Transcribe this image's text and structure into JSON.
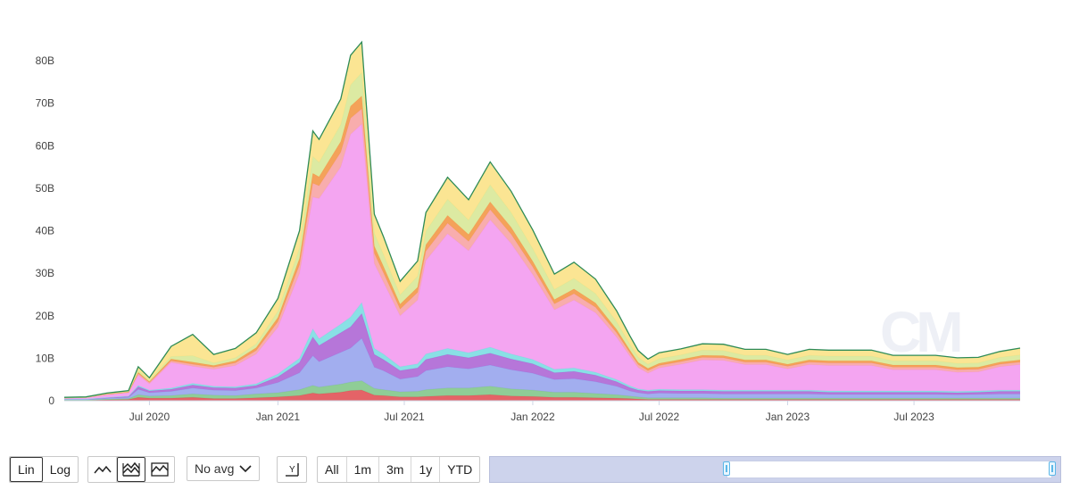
{
  "chart_data": {
    "type": "area",
    "stacked": true,
    "y_ticks": [
      "0",
      "10B",
      "20B",
      "30B",
      "40B",
      "50B",
      "60B",
      "70B",
      "80B"
    ],
    "x_ticks": [
      "Jul 2020",
      "Jan 2021",
      "Jul 2021",
      "Jan 2022",
      "Jul 2022",
      "Jan 2023",
      "Jul 2023"
    ],
    "ylim": [
      0,
      88
    ],
    "y_unit": "B",
    "x_range": [
      "2020-03-01",
      "2023-11-30"
    ],
    "grid": false,
    "dates": [
      "2020-03-01",
      "2020-04-01",
      "2020-05-01",
      "2020-06-01",
      "2020-06-15",
      "2020-07-01",
      "2020-08-01",
      "2020-09-01",
      "2020-10-01",
      "2020-11-01",
      "2020-12-01",
      "2021-01-01",
      "2021-02-01",
      "2021-02-20",
      "2021-03-01",
      "2021-04-01",
      "2021-04-15",
      "2021-05-01",
      "2021-05-19",
      "2021-06-01",
      "2021-06-25",
      "2021-07-20",
      "2021-08-01",
      "2021-09-01",
      "2021-10-01",
      "2021-11-01",
      "2021-12-01",
      "2022-01-01",
      "2022-02-01",
      "2022-03-01",
      "2022-04-01",
      "2022-05-01",
      "2022-05-20",
      "2022-06-01",
      "2022-06-15",
      "2022-07-01",
      "2022-08-01",
      "2022-09-01",
      "2022-10-01",
      "2022-11-01",
      "2022-12-01",
      "2023-01-01",
      "2023-02-01",
      "2023-03-01",
      "2023-04-01",
      "2023-05-01",
      "2023-06-01",
      "2023-07-01",
      "2023-08-01",
      "2023-09-01",
      "2023-10-01",
      "2023-11-01",
      "2023-11-30"
    ],
    "series": [
      {
        "color": "#e2565a",
        "values": [
          0.1,
          0.1,
          0.2,
          0.3,
          0.8,
          0.6,
          0.6,
          0.8,
          0.5,
          0.5,
          0.7,
          0.9,
          1.2,
          1.8,
          1.6,
          2.0,
          2.4,
          2.5,
          1.3,
          1.2,
          0.9,
          0.9,
          1.0,
          1.2,
          1.2,
          1.4,
          1.1,
          1.0,
          0.8,
          0.8,
          0.7,
          0.6,
          0.5,
          0.4,
          0.3,
          0.3,
          0.3,
          0.3,
          0.3,
          0.3,
          0.3,
          0.3,
          0.3,
          0.3,
          0.3,
          0.3,
          0.3,
          0.3,
          0.3,
          0.3,
          0.3,
          0.3,
          0.3
        ]
      },
      {
        "color": "#86c98d",
        "values": [
          0.1,
          0.1,
          0.2,
          0.2,
          0.6,
          0.5,
          0.6,
          0.8,
          0.8,
          0.7,
          0.9,
          1.0,
          1.4,
          1.8,
          1.6,
          1.9,
          2.0,
          2.2,
          1.6,
          1.4,
          1.2,
          1.3,
          1.6,
          1.8,
          1.8,
          2.0,
          1.7,
          1.5,
          1.2,
          1.2,
          1.0,
          0.8,
          0.6,
          0.5,
          0.4,
          0.4,
          0.4,
          0.4,
          0.3,
          0.3,
          0.3,
          0.3,
          0.3,
          0.3,
          0.3,
          0.3,
          0.3,
          0.3,
          0.3,
          0.3,
          0.3,
          0.3,
          0.3
        ]
      },
      {
        "color": "#9aa7ee",
        "values": [
          0.1,
          0.1,
          0.2,
          0.3,
          1.3,
          0.8,
          1.0,
          1.4,
          1.2,
          1.2,
          1.4,
          2.4,
          4.0,
          7.0,
          6.0,
          7.5,
          8.0,
          10.0,
          5.0,
          4.5,
          3.0,
          3.5,
          4.5,
          5.0,
          4.5,
          5.0,
          4.5,
          4.0,
          3.0,
          3.2,
          2.8,
          2.0,
          1.2,
          1.0,
          0.9,
          1.1,
          1.0,
          1.0,
          1.0,
          1.0,
          1.0,
          1.0,
          1.0,
          0.9,
          0.9,
          0.9,
          0.9,
          0.9,
          0.9,
          0.8,
          0.9,
          1.0,
          1.0
        ]
      },
      {
        "color": "#b06ad6",
        "values": [
          0.1,
          0.1,
          0.1,
          0.2,
          0.6,
          0.4,
          0.5,
          0.7,
          0.6,
          0.6,
          0.6,
          1.3,
          2.4,
          4.4,
          3.8,
          4.6,
          5.0,
          5.8,
          3.0,
          2.6,
          2.0,
          2.0,
          2.6,
          2.9,
          2.6,
          2.8,
          2.5,
          2.2,
          1.6,
          1.7,
          1.5,
          1.1,
          0.8,
          0.6,
          0.6,
          0.6,
          0.6,
          0.6,
          0.6,
          0.6,
          0.6,
          0.6,
          0.6,
          0.5,
          0.5,
          0.5,
          0.5,
          0.5,
          0.5,
          0.5,
          0.5,
          0.6,
          0.6
        ]
      },
      {
        "color": "#7fdde3",
        "values": [
          0.0,
          0.0,
          0.1,
          0.1,
          0.3,
          0.2,
          0.3,
          0.4,
          0.3,
          0.3,
          0.4,
          0.7,
          1.0,
          1.9,
          1.6,
          2.0,
          2.3,
          2.6,
          1.4,
          1.3,
          0.9,
          1.0,
          1.3,
          1.4,
          1.2,
          1.4,
          1.2,
          1.0,
          0.8,
          0.8,
          0.7,
          0.5,
          0.4,
          0.3,
          0.3,
          0.3,
          0.3,
          0.3,
          0.3,
          0.3,
          0.3,
          0.3,
          0.3,
          0.3,
          0.3,
          0.3,
          0.3,
          0.3,
          0.3,
          0.3,
          0.3,
          0.3,
          0.3
        ]
      },
      {
        "color": "#f39df0",
        "values": [
          0.3,
          0.4,
          0.6,
          0.8,
          2.4,
          1.5,
          6.0,
          4.0,
          4.0,
          5.0,
          7.0,
          11.0,
          20.0,
          31.0,
          33.0,
          37.0,
          43.0,
          42.0,
          20.0,
          17.0,
          12.0,
          15.0,
          22.0,
          27.0,
          24.0,
          30.0,
          26.0,
          20.0,
          14.0,
          16.0,
          14.0,
          10.0,
          7.0,
          5.0,
          4.0,
          5.0,
          6.0,
          7.0,
          7.0,
          6.0,
          6.0,
          5.0,
          6.0,
          6.0,
          6.0,
          6.0,
          5.0,
          5.0,
          5.0,
          4.5,
          4.5,
          5.5,
          6.0
        ]
      },
      {
        "color": "#f7a6a6",
        "values": [
          0.0,
          0.0,
          0.1,
          0.1,
          0.4,
          0.3,
          0.4,
          0.5,
          0.5,
          0.6,
          0.8,
          1.3,
          2.0,
          3.3,
          3.0,
          3.5,
          3.8,
          3.6,
          2.4,
          2.2,
          1.6,
          1.8,
          2.2,
          2.5,
          2.2,
          2.4,
          2.2,
          1.8,
          1.4,
          1.5,
          1.3,
          1.0,
          0.8,
          0.7,
          0.6,
          0.6,
          0.6,
          0.6,
          0.6,
          0.6,
          0.6,
          0.6,
          0.6,
          0.6,
          0.6,
          0.6,
          0.6,
          0.6,
          0.6,
          0.6,
          0.6,
          0.6,
          0.6
        ]
      },
      {
        "color": "#f39a4c",
        "values": [
          0.0,
          0.0,
          0.1,
          0.1,
          0.3,
          0.2,
          0.4,
          0.5,
          0.4,
          0.5,
          0.7,
          1.0,
          1.5,
          2.3,
          2.1,
          2.5,
          2.8,
          3.0,
          1.7,
          1.5,
          1.1,
          1.2,
          1.5,
          1.8,
          1.6,
          1.8,
          1.6,
          1.3,
          1.0,
          1.1,
          1.0,
          0.8,
          0.6,
          0.5,
          0.5,
          0.5,
          0.5,
          0.5,
          0.5,
          0.5,
          0.5,
          0.5,
          0.5,
          0.5,
          0.5,
          0.5,
          0.5,
          0.5,
          0.5,
          0.5,
          0.5,
          0.5,
          0.5
        ]
      },
      {
        "color": "#d9e89a",
        "values": [
          0.0,
          0.0,
          0.1,
          0.1,
          0.5,
          0.3,
          0.6,
          1.5,
          0.6,
          0.7,
          0.9,
          1.5,
          2.5,
          4.0,
          3.4,
          4.0,
          5.0,
          5.5,
          3.0,
          2.8,
          2.2,
          2.6,
          3.2,
          3.8,
          3.4,
          4.0,
          3.5,
          3.0,
          2.4,
          2.5,
          2.2,
          1.8,
          1.4,
          1.2,
          1.0,
          1.1,
          1.1,
          1.2,
          1.2,
          1.1,
          1.1,
          1.0,
          1.1,
          1.1,
          1.1,
          1.1,
          1.0,
          1.0,
          1.0,
          1.0,
          1.0,
          1.1,
          1.2
        ]
      },
      {
        "color": "#fbe38a",
        "values": [
          0.1,
          0.1,
          0.1,
          0.2,
          0.8,
          0.6,
          2.4,
          5.0,
          2.0,
          2.2,
          2.6,
          3.0,
          4.0,
          6.0,
          5.4,
          6.0,
          7.0,
          7.2,
          4.5,
          4.2,
          3.2,
          3.6,
          4.4,
          5.2,
          4.8,
          5.4,
          5.0,
          4.4,
          3.6,
          3.8,
          3.4,
          2.6,
          2.0,
          1.6,
          1.2,
          1.4,
          1.4,
          1.5,
          1.5,
          1.4,
          1.4,
          1.3,
          1.4,
          1.4,
          1.4,
          1.4,
          1.3,
          1.3,
          1.3,
          1.3,
          1.3,
          1.4,
          1.6
        ]
      }
    ]
  },
  "controls": {
    "scale_lin": "Lin",
    "scale_log": "Log",
    "avg_select": "No avg",
    "ranges": [
      "All",
      "1m",
      "3m",
      "1y",
      "YTD"
    ]
  },
  "watermark": "CM"
}
